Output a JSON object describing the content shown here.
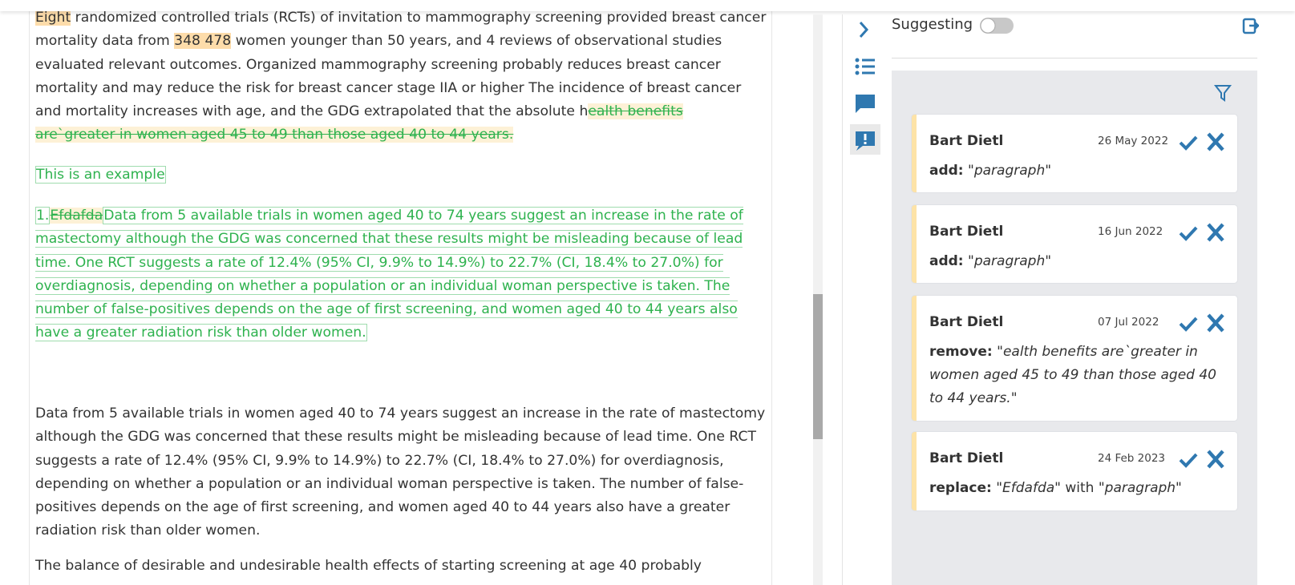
{
  "document": {
    "paragraph_1": {
      "highlight_1": "Eight",
      "text_1": " randomized controlled trials (RCTs) of invitation to mammography screening provided breast cancer mortality data from ",
      "highlight_2": "348 478",
      "text_2": " women younger than 50 years, and 4 reviews of observational studies evaluated relevant outcomes. Organized mammography screening probably reduces breast cancer mortality and may reduce the risk for breast cancer stage IIA or higher The incidence of breast cancer and mortality increases with age, and the GDG extrapolated that the absolute h",
      "deleted": "ealth benefits are`greater in women aged 45 to 49 than those aged 40 to 44 years."
    },
    "paragraph_2": {
      "inserted": "This is an example"
    },
    "paragraph_3": {
      "number": "1.",
      "deleted": "Efdafda",
      "inserted": "Data from 5 available trials in women aged 40 to 74 years suggest an increase in the rate of mastectomy although the GDG was concerned that these results might be misleading because of lead time. One RCT suggests a rate of 12.4% (95% CI, 9.9% to 14.9%) to 22.7% (CI, 18.4% to 27.0%) for overdiagnosis, depending on whether a population or an individual woman perspective is taken. The number of false-positives depends on the age of first screening, and women aged 40 to 44 years also have a greater radiation risk than older women."
    },
    "paragraph_4": "Data from 5 available trials in women aged 40 to 74 years suggest an increase in the rate of mastectomy although the GDG was concerned that these results might be misleading because of lead time. One RCT suggests a rate of 12.4% (95% CI, 9.9% to 14.9%) to 22.7% (CI, 18.4% to 27.0%) for overdiagnosis, depending on whether a population or an individual woman perspective is taken. The number of false-positives depends on the age of first screening, and women aged 40 to 44 years also have a greater radiation risk than older women.",
    "paragraph_5": "The balance of desirable and undesirable health effects of starting screening at age 40 probably"
  },
  "panel": {
    "mode": "Suggesting",
    "suggestions": [
      {
        "author": "Bart Dietl",
        "date": "26 May 2022",
        "action": "add:",
        "content": "\"paragraph\""
      },
      {
        "author": "Bart Dietl",
        "date": "16 Jun 2022",
        "action": "add:",
        "content": "\"paragraph\""
      },
      {
        "author": "Bart Dietl",
        "date": "07 Jul 2022",
        "action": "remove:",
        "content": "\"ealth benefits are`greater in women aged 45 to 49 than those aged 40 to 44 years.\""
      },
      {
        "author": "Bart Dietl",
        "date": "24 Feb 2023",
        "action": "replace:",
        "content": "\"Efdafda\"",
        "joiner": " with ",
        "content_2": "\"paragraph\""
      }
    ]
  }
}
